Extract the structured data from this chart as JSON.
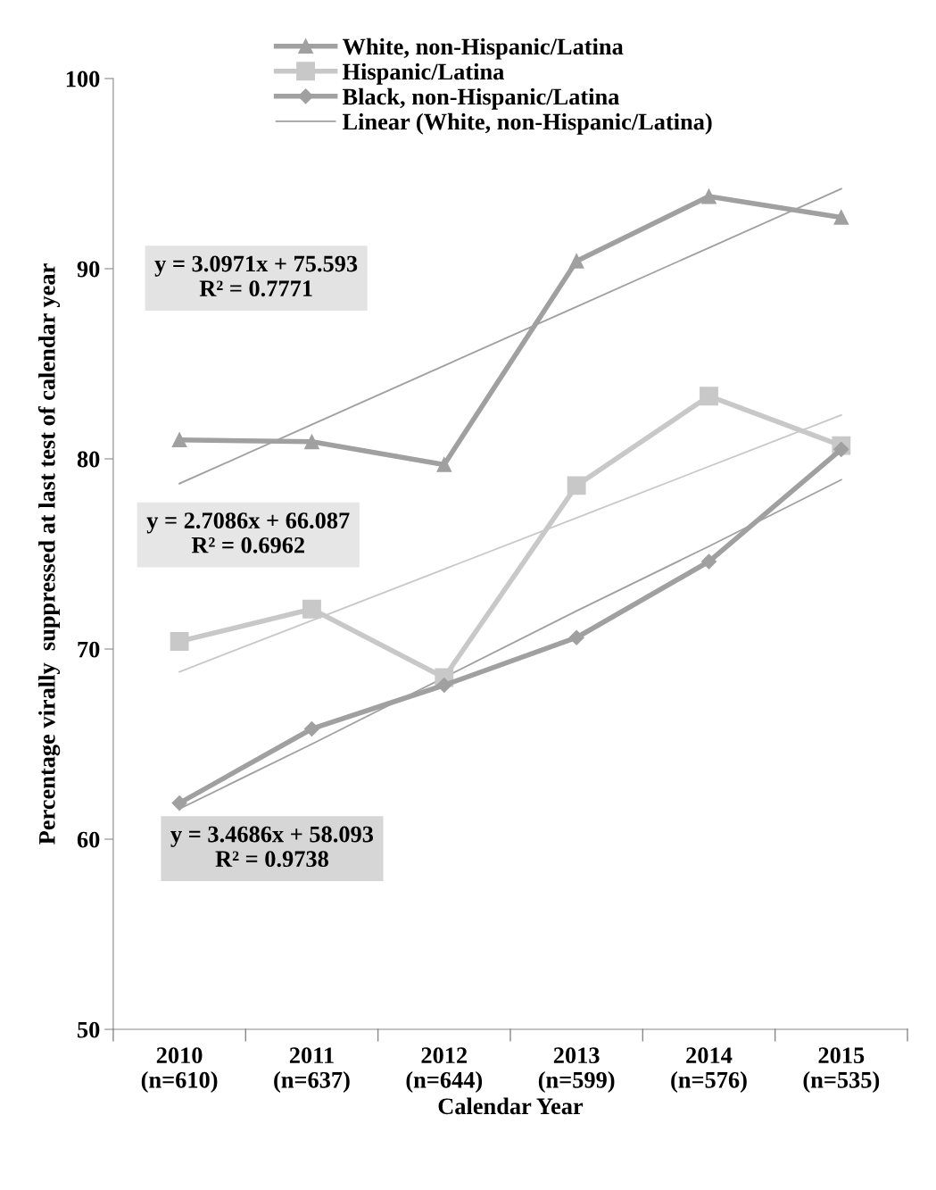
{
  "chart_data": {
    "type": "line",
    "xlabel": "Calendar Year",
    "ylabel": "Percentage virally  suppressed at last test of calendar year",
    "categories": [
      "2010\n(n=610)",
      "2011\n(n=637)",
      "2012\n(n=644)",
      "2013\n(n=599)",
      "2014\n(n=576)",
      "2015\n(n=535)"
    ],
    "series": [
      {
        "name": "White, non-Hispanic/Latina",
        "color": "#a0a0a0",
        "marker": "triangle",
        "values": [
          81.0,
          80.9,
          79.7,
          90.4,
          93.8,
          92.7
        ]
      },
      {
        "name": "Hispanic/Latina",
        "color": "#c8c8c8",
        "marker": "square",
        "values": [
          70.4,
          72.1,
          68.5,
          78.6,
          83.3,
          80.7
        ]
      },
      {
        "name": "Black, non-Hispanic/Latina",
        "color": "#a0a0a0",
        "marker": "diamond",
        "values": [
          61.9,
          65.8,
          68.1,
          70.6,
          74.6,
          80.5
        ]
      },
      {
        "name": "Linear (White, non-Hispanic/Latina)",
        "color": "#a0a0a0",
        "marker": "none",
        "values": [
          78.7,
          81.8,
          84.9,
          88.0,
          91.1,
          94.2
        ]
      },
      {
        "color": "#c8c8c8",
        "marker": "none",
        "values": [
          68.8,
          71.5,
          74.2,
          76.9,
          79.6,
          82.3
        ]
      },
      {
        "color": "#a0a0a0",
        "marker": "none",
        "values": [
          61.6,
          65.0,
          68.5,
          72.0,
          75.4,
          78.9
        ]
      }
    ],
    "ylim": [
      50,
      100
    ],
    "yticks": [
      50,
      60,
      70,
      80,
      90,
      100
    ],
    "annotations": [
      "y = 3.0971x + 75.593\nR² = 0.7771",
      "y = 2.7086x + 66.087\nR² = 0.6962",
      "y = 3.4686x + 58.093\nR² = 0.9738"
    ],
    "legend": "top",
    "grid": false,
    "line_style": "solid"
  }
}
